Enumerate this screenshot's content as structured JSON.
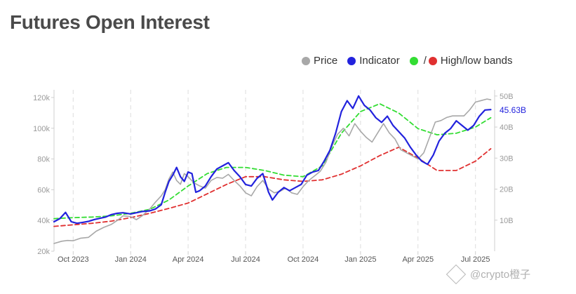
{
  "title": "Futures Open Interest",
  "legend": {
    "price": "Price",
    "indicator": "Indicator",
    "slash": "/",
    "bands": "High/low bands"
  },
  "colors": {
    "price": "#a8a8a8",
    "indicator": "#2222dd",
    "high_band": "#33dd33",
    "low_band": "#e03030",
    "grid": "#dddddd",
    "axis_text": "#9a9a9a"
  },
  "watermark": "@crypto橙子",
  "chart_data": {
    "type": "line",
    "x_labels": [
      "Oct 2023",
      "Jan 2024",
      "Apr 2024",
      "Jul 2024",
      "Oct 2024",
      "Jan 2025",
      "Apr 2025",
      "Jul 2025"
    ],
    "x_label_positions": [
      0.0,
      3.0,
      6.0,
      9.0,
      12.0,
      15.0,
      18.0,
      21.0
    ],
    "x_range": [
      -1.0,
      22.0
    ],
    "y_left": {
      "ticks": [
        "20k",
        "40k",
        "60k",
        "80k",
        "100k",
        "120k"
      ],
      "tick_values": [
        20000,
        40000,
        60000,
        80000,
        100000,
        120000
      ],
      "range": [
        20000,
        125000
      ]
    },
    "y_right": {
      "ticks": [
        "10B",
        "20B",
        "30B",
        "40B",
        "50B"
      ],
      "tick_values": [
        10,
        20,
        30,
        40,
        50
      ],
      "range": [
        0,
        52
      ]
    },
    "current_value_label": "45.63B",
    "current_value": 45.63,
    "grid": "vertical-dashed",
    "legend_position": "top-right",
    "series": [
      {
        "name": "Price",
        "axis": "left",
        "points": [
          [
            -1,
            25000
          ],
          [
            -0.6,
            26500
          ],
          [
            -0.3,
            27000
          ],
          [
            0,
            26800
          ],
          [
            0.4,
            28500
          ],
          [
            0.8,
            29000
          ],
          [
            1.2,
            33000
          ],
          [
            1.6,
            35500
          ],
          [
            2,
            37500
          ],
          [
            2.3,
            40000
          ],
          [
            2.6,
            43000
          ],
          [
            3,
            42500
          ],
          [
            3.3,
            40500
          ],
          [
            3.6,
            43000
          ],
          [
            4,
            47500
          ],
          [
            4.3,
            52000
          ],
          [
            4.6,
            56000
          ],
          [
            4.8,
            60000
          ],
          [
            5,
            67000
          ],
          [
            5.2,
            71500
          ],
          [
            5.4,
            66000
          ],
          [
            5.6,
            63500
          ],
          [
            5.8,
            70500
          ],
          [
            6,
            68500
          ],
          [
            6.3,
            64500
          ],
          [
            6.6,
            62500
          ],
          [
            6.9,
            61000
          ],
          [
            7.2,
            66000
          ],
          [
            7.5,
            68000
          ],
          [
            7.8,
            67500
          ],
          [
            8.1,
            70000
          ],
          [
            8.4,
            66000
          ],
          [
            8.7,
            62500
          ],
          [
            9,
            58000
          ],
          [
            9.3,
            56000
          ],
          [
            9.6,
            62000
          ],
          [
            9.9,
            66000
          ],
          [
            10.2,
            60500
          ],
          [
            10.5,
            58000
          ],
          [
            10.8,
            59000
          ],
          [
            11.1,
            61000
          ],
          [
            11.4,
            58000
          ],
          [
            11.7,
            57000
          ],
          [
            12,
            62000
          ],
          [
            12.3,
            66000
          ],
          [
            12.6,
            69000
          ],
          [
            12.9,
            72000
          ],
          [
            13.2,
            78000
          ],
          [
            13.5,
            88000
          ],
          [
            13.8,
            96000
          ],
          [
            14.1,
            100000
          ],
          [
            14.4,
            95000
          ],
          [
            14.7,
            103000
          ],
          [
            15,
            98000
          ],
          [
            15.3,
            94000
          ],
          [
            15.6,
            91000
          ],
          [
            15.9,
            97000
          ],
          [
            16.2,
            103000
          ],
          [
            16.5,
            97000
          ],
          [
            16.8,
            93000
          ],
          [
            17.1,
            86000
          ],
          [
            17.4,
            84000
          ],
          [
            17.7,
            82000
          ],
          [
            18,
            80000
          ],
          [
            18.3,
            84000
          ],
          [
            18.6,
            94000
          ],
          [
            18.9,
            104000
          ],
          [
            19.2,
            105000
          ],
          [
            19.5,
            107000
          ],
          [
            19.8,
            108000
          ],
          [
            20.1,
            108000
          ],
          [
            20.4,
            108000
          ],
          [
            20.7,
            112000
          ],
          [
            21,
            117000
          ],
          [
            21.3,
            118000
          ],
          [
            21.6,
            119000
          ],
          [
            21.8,
            118500
          ]
        ]
      },
      {
        "name": "Indicator",
        "axis": "right",
        "points": [
          [
            -1,
            9.5
          ],
          [
            -0.7,
            10.5
          ],
          [
            -0.4,
            12.5
          ],
          [
            -0.1,
            9.5
          ],
          [
            0.2,
            9.0
          ],
          [
            0.5,
            9.3
          ],
          [
            0.8,
            9.6
          ],
          [
            1.1,
            10.2
          ],
          [
            1.4,
            10.6
          ],
          [
            1.7,
            11.0
          ],
          [
            2,
            11.8
          ],
          [
            2.3,
            12.2
          ],
          [
            2.6,
            12.4
          ],
          [
            3,
            12.0
          ],
          [
            3.3,
            12.4
          ],
          [
            3.6,
            12.8
          ],
          [
            4,
            13.0
          ],
          [
            4.3,
            13.6
          ],
          [
            4.6,
            15.0
          ],
          [
            4.8,
            19.0
          ],
          [
            5,
            22.5
          ],
          [
            5.2,
            24.5
          ],
          [
            5.4,
            27.0
          ],
          [
            5.6,
            24.0
          ],
          [
            5.8,
            22.5
          ],
          [
            6,
            25.5
          ],
          [
            6.2,
            25.0
          ],
          [
            6.4,
            19.0
          ],
          [
            6.6,
            19.5
          ],
          [
            6.9,
            21.0
          ],
          [
            7.2,
            24.0
          ],
          [
            7.5,
            26.5
          ],
          [
            7.8,
            27.5
          ],
          [
            8.1,
            28.5
          ],
          [
            8.4,
            26.0
          ],
          [
            8.7,
            24.0
          ],
          [
            9,
            21.5
          ],
          [
            9.3,
            21.0
          ],
          [
            9.6,
            23.5
          ],
          [
            9.9,
            25.0
          ],
          [
            10.2,
            19.0
          ],
          [
            10.4,
            16.5
          ],
          [
            10.7,
            19.0
          ],
          [
            11,
            20.5
          ],
          [
            11.3,
            19.5
          ],
          [
            11.6,
            20.5
          ],
          [
            11.9,
            21.5
          ],
          [
            12.2,
            24.5
          ],
          [
            12.5,
            25.5
          ],
          [
            12.8,
            26.0
          ],
          [
            13.1,
            29.0
          ],
          [
            13.4,
            32.5
          ],
          [
            13.7,
            38.0
          ],
          [
            14,
            45.0
          ],
          [
            14.3,
            48.5
          ],
          [
            14.6,
            46.0
          ],
          [
            14.9,
            50.0
          ],
          [
            15.2,
            47.0
          ],
          [
            15.5,
            45.5
          ],
          [
            15.8,
            43.0
          ],
          [
            16.1,
            41.5
          ],
          [
            16.4,
            43.5
          ],
          [
            16.7,
            40.5
          ],
          [
            17,
            38.5
          ],
          [
            17.3,
            36.5
          ],
          [
            17.6,
            33.5
          ],
          [
            17.9,
            31.0
          ],
          [
            18.2,
            29.0
          ],
          [
            18.5,
            28.0
          ],
          [
            18.8,
            31.0
          ],
          [
            19.1,
            35.5
          ],
          [
            19.4,
            38.0
          ],
          [
            19.7,
            39.5
          ],
          [
            20,
            42.0
          ],
          [
            20.3,
            40.5
          ],
          [
            20.6,
            39.0
          ],
          [
            20.9,
            40.5
          ],
          [
            21.2,
            43.5
          ],
          [
            21.5,
            45.5
          ],
          [
            21.8,
            45.63
          ]
        ]
      },
      {
        "name": "High band",
        "axis": "right",
        "points": [
          [
            -1,
            10.5
          ],
          [
            0,
            10.8
          ],
          [
            1,
            11.0
          ],
          [
            2,
            11.4
          ],
          [
            3,
            12.2
          ],
          [
            4,
            13.5
          ],
          [
            5,
            16.5
          ],
          [
            6,
            21.0
          ],
          [
            7,
            25.0
          ],
          [
            8,
            27.0
          ],
          [
            9,
            27.0
          ],
          [
            10,
            26.0
          ],
          [
            11,
            24.5
          ],
          [
            12,
            24.0
          ],
          [
            13,
            27.5
          ],
          [
            14,
            38.0
          ],
          [
            15,
            45.0
          ],
          [
            16,
            47.5
          ],
          [
            17,
            44.5
          ],
          [
            18,
            39.5
          ],
          [
            19,
            37.5
          ],
          [
            20,
            38.0
          ],
          [
            21,
            40.0
          ],
          [
            21.8,
            43.0
          ]
        ]
      },
      {
        "name": "Low band",
        "axis": "right",
        "points": [
          [
            -1,
            8.0
          ],
          [
            0,
            8.5
          ],
          [
            1,
            9.0
          ],
          [
            2,
            9.7
          ],
          [
            3,
            10.8
          ],
          [
            4,
            12.2
          ],
          [
            5,
            13.8
          ],
          [
            6,
            15.5
          ],
          [
            7,
            18.5
          ],
          [
            8,
            21.5
          ],
          [
            9,
            24.0
          ],
          [
            10,
            24.0
          ],
          [
            11,
            23.0
          ],
          [
            12,
            22.5
          ],
          [
            13,
            23.0
          ],
          [
            14,
            24.8
          ],
          [
            15,
            27.5
          ],
          [
            16,
            30.8
          ],
          [
            17,
            33.5
          ],
          [
            18,
            30.0
          ],
          [
            19,
            26.0
          ],
          [
            20,
            26.0
          ],
          [
            21,
            29.0
          ],
          [
            21.8,
            33.0
          ]
        ]
      }
    ]
  }
}
